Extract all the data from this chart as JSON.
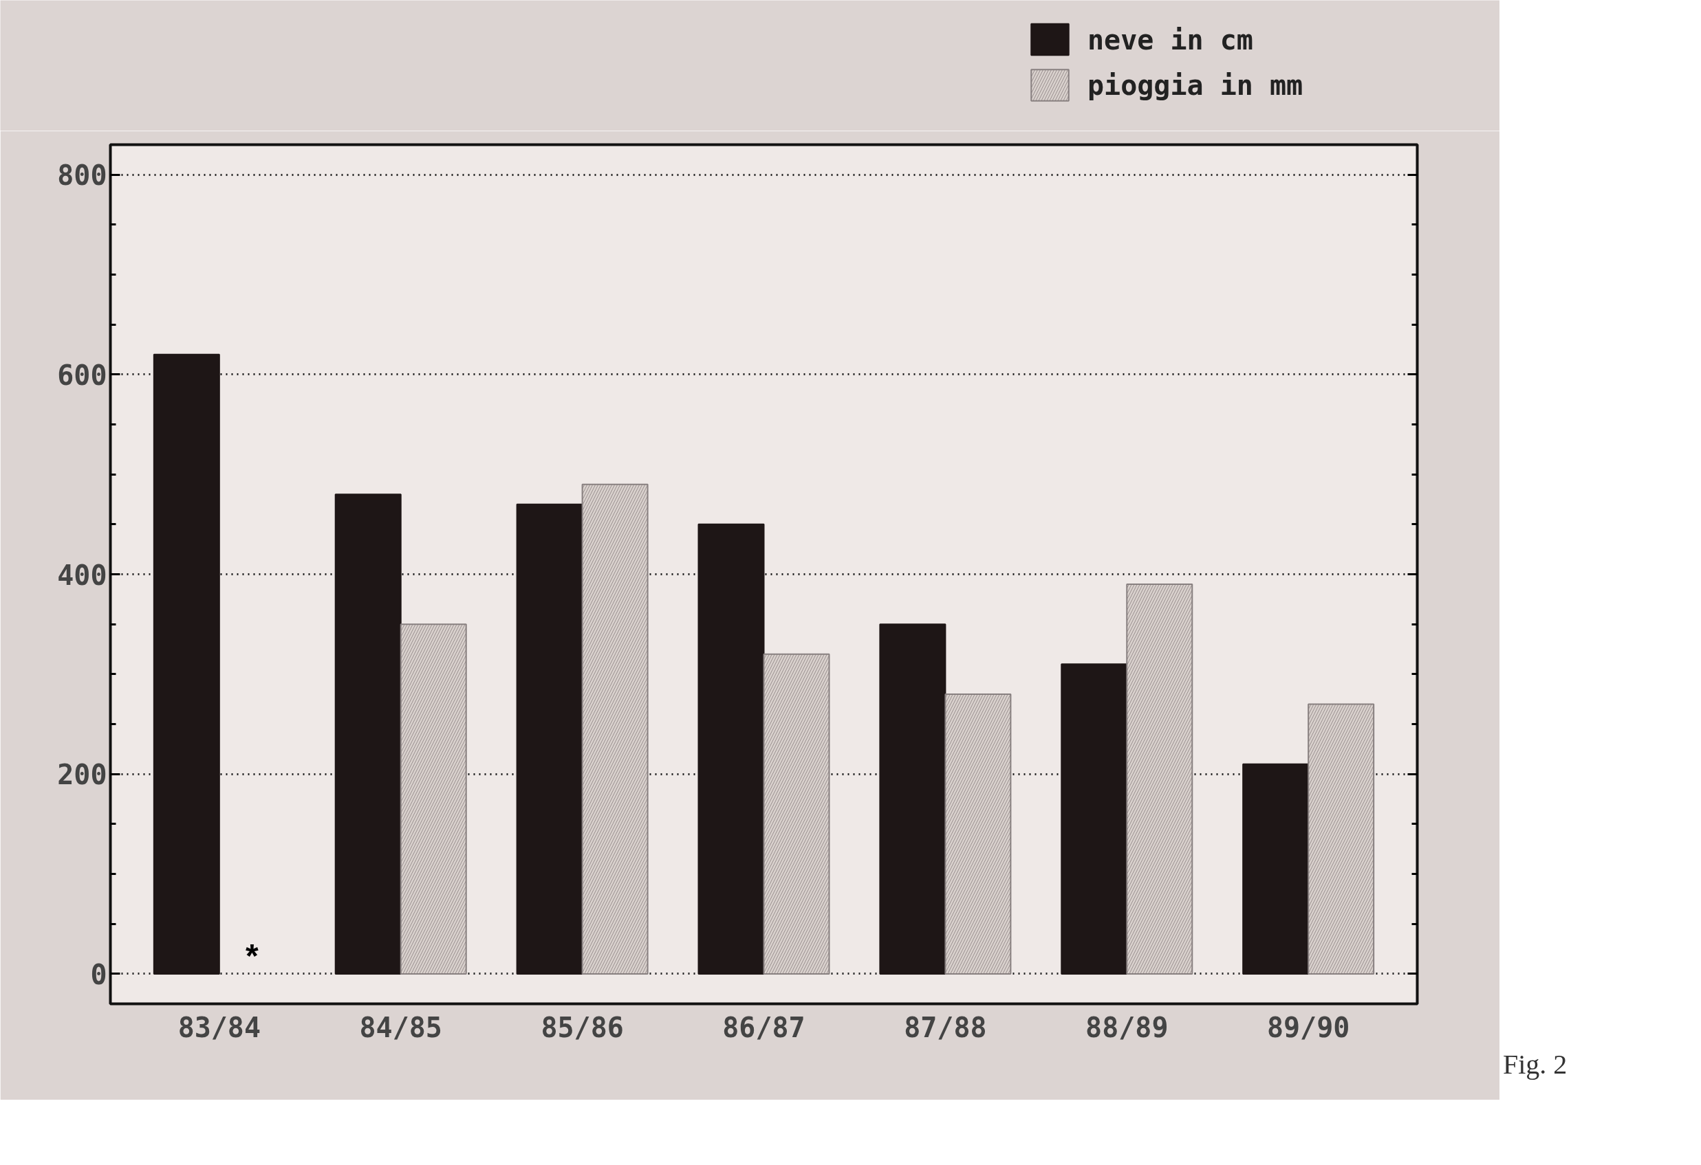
{
  "chart_data": {
    "type": "bar",
    "categories": [
      "83/84",
      "84/85",
      "85/86",
      "86/87",
      "87/88",
      "88/89",
      "89/90"
    ],
    "series": [
      {
        "name": "neve in cm",
        "color": "#1e1616",
        "values": [
          620,
          480,
          470,
          450,
          350,
          310,
          210
        ]
      },
      {
        "name": "pioggia in mm",
        "color": "#d8d0cc",
        "values": [
          null,
          350,
          490,
          320,
          280,
          390,
          270
        ]
      }
    ],
    "ylim": [
      -30,
      830
    ],
    "yticks": [
      0,
      200,
      400,
      600,
      800
    ],
    "grid": "y",
    "legend": "top right",
    "annotations": [
      {
        "text": "*",
        "x": "83/84",
        "y": 0
      },
      "Fig. 2"
    ]
  }
}
